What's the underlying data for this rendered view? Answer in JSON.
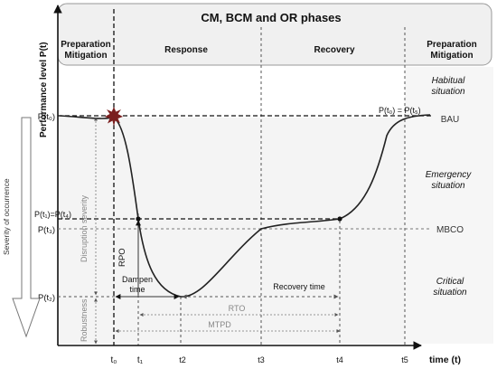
{
  "title": "CM, BCM and OR phases",
  "phases": [
    {
      "line1": "Preparation",
      "line2": "Mitigation"
    },
    {
      "line1": "Response",
      "line2": ""
    },
    {
      "line1": "Recovery",
      "line2": ""
    },
    {
      "line1": "Preparation",
      "line2": "Mitigation"
    }
  ],
  "y_axis_label": "Performance  level P(t)",
  "x_axis_label": "time (t)",
  "severity_label": "Severity of occurrence",
  "levels": {
    "p_t0": "P(t₀)",
    "p_t1_t4": "P(t₁)=P(t₄)",
    "p_t3": "P(t₃)",
    "p_t2": "P(t₂)",
    "p_t0_t5": "P(t₀) = P(t₅)"
  },
  "ticks": {
    "t0": "t₀",
    "t1": "t₁",
    "t2": "t2",
    "t3": "t3",
    "t4": "t4",
    "t5": "t5"
  },
  "zones": {
    "habitual_1": "Habitual",
    "habitual_2": "situation",
    "emergency_1": "Emergency",
    "emergency_2": "situation",
    "critical_1": "Critical",
    "critical_2": "situation"
  },
  "markers": {
    "bau": "BAU",
    "mbco": "MBCO"
  },
  "annotations": {
    "disruption_severity": "Disruption severity",
    "robustness": "Robustness",
    "rpo": "RPO",
    "dampen_1": "Dampen",
    "dampen_2": "time",
    "recovery_time": "Recovery time",
    "rto": "RTO",
    "mtpd": "MTPD"
  },
  "colors": {
    "header_band": "#f0f0f0",
    "zone_shade": "#f4f4f4",
    "incident_star": "#7a1f1f",
    "curve": "#222222",
    "gray_text": "#888888"
  }
}
